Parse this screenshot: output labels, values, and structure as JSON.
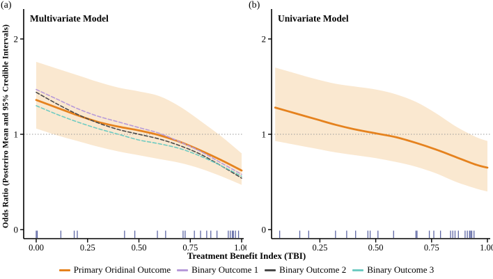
{
  "figure": {
    "panel_a_tag": "(a)",
    "panel_b_tag": "(b)",
    "y_axis_label": "Odds Ratio (Posteriro Mean and 95% Credible Intervals)",
    "x_axis_label": "Treatment Benefit Index (TBI)"
  },
  "colors": {
    "band": "#FAE8D0",
    "reference_line": "#9A9A9A",
    "axis": "#000000",
    "rug": "#333E8C",
    "primary": "#E5821E",
    "binary1": "#B79AD9",
    "binary2": "#4A4A4A",
    "binary3": "#6FCBC2"
  },
  "legend": [
    {
      "label": "Primary Oridinal Outcome",
      "color": "#E5821E"
    },
    {
      "label": "Binary Outcome 1",
      "color": "#B79AD9"
    },
    {
      "label": "Binary Outcome 2",
      "color": "#4A4A4A"
    },
    {
      "label": "Binary Outcome 3",
      "color": "#6FCBC2"
    }
  ],
  "chart_data": [
    {
      "type": "line",
      "tag": "(a)",
      "title": "Multivariate Model",
      "xlabel": "Treatment Benefit Index (TBI)",
      "ylabel": "Odds Ratio (Posteriro Mean and 95% Credible Intervals)",
      "xlim": [
        0,
        1
      ],
      "ylim": [
        0,
        2.2
      ],
      "reference_line_y": 1,
      "x_tick_values": [
        0,
        0.25,
        0.5,
        0.75,
        1.0
      ],
      "x_tick_labels": [
        "0.00",
        "0.25",
        "0.50",
        "0.75",
        "1.00"
      ],
      "y_tick_values": [
        0,
        1,
        2
      ],
      "y_tick_labels": [
        "0",
        "1",
        "2"
      ],
      "x": [
        0,
        0.1,
        0.2,
        0.3,
        0.4,
        0.5,
        0.6,
        0.7,
        0.8,
        0.9,
        1.0
      ],
      "series": [
        {
          "name": "Primary Oridinal Outcome",
          "color": "#E5821E",
          "dash": "",
          "width": 2.8,
          "values": [
            1.36,
            1.28,
            1.2,
            1.13,
            1.08,
            1.04,
            0.99,
            0.92,
            0.83,
            0.73,
            0.62
          ]
        },
        {
          "name": "Binary Outcome 1",
          "color": "#B79AD9",
          "dash": "5 3",
          "width": 1.6,
          "values": [
            1.47,
            1.37,
            1.27,
            1.19,
            1.13,
            1.07,
            1.01,
            0.92,
            0.82,
            0.7,
            0.58
          ]
        },
        {
          "name": "Binary Outcome 2",
          "color": "#4A4A4A",
          "dash": "5 3",
          "width": 1.6,
          "values": [
            1.44,
            1.32,
            1.21,
            1.12,
            1.05,
            1.0,
            0.95,
            0.88,
            0.79,
            0.67,
            0.54
          ]
        },
        {
          "name": "Binary Outcome 3",
          "color": "#6FCBC2",
          "dash": "5 3",
          "width": 1.6,
          "values": [
            1.3,
            1.21,
            1.13,
            1.06,
            1.0,
            0.94,
            0.9,
            0.85,
            0.77,
            0.67,
            0.56
          ]
        }
      ],
      "band": {
        "upper": [
          1.76,
          1.69,
          1.62,
          1.55,
          1.49,
          1.45,
          1.4,
          1.29,
          1.14,
          0.98,
          0.8
        ],
        "lower": [
          1.06,
          0.99,
          0.93,
          0.87,
          0.82,
          0.78,
          0.74,
          0.7,
          0.64,
          0.56,
          0.47
        ]
      },
      "rug": [
        0.0,
        0.005,
        0.12,
        0.185,
        0.2,
        0.43,
        0.48,
        0.59,
        0.63,
        0.715,
        0.725,
        0.77,
        0.8,
        0.83,
        0.85,
        0.88,
        0.935,
        0.945,
        0.955,
        0.96,
        0.97,
        0.985
      ]
    },
    {
      "type": "line",
      "tag": "(b)",
      "title": "Univariate Model",
      "xlabel": "Treatment Benefit Index (TBI)",
      "ylabel": "Odds Ratio (Posteriro Mean and 95% Credible Intervals)",
      "xlim": [
        0.04,
        1
      ],
      "ylim": [
        0,
        2.2
      ],
      "reference_line_y": 1,
      "x_tick_values": [
        0.25,
        0.5,
        0.75,
        1.0
      ],
      "x_tick_labels": [
        "0.25",
        "0.50",
        "0.75",
        "1.00"
      ],
      "y_tick_values": [
        0,
        1,
        2
      ],
      "y_tick_labels": [
        "0",
        "1",
        "2"
      ],
      "x": [
        0.05,
        0.14,
        0.23,
        0.32,
        0.41,
        0.5,
        0.59,
        0.68,
        0.77,
        0.86,
        0.95,
        1.0
      ],
      "series": [
        {
          "name": "Primary Oridinal Outcome",
          "color": "#E5821E",
          "dash": "",
          "width": 2.8,
          "values": [
            1.28,
            1.22,
            1.16,
            1.1,
            1.05,
            1.01,
            0.97,
            0.91,
            0.84,
            0.76,
            0.68,
            0.65
          ]
        }
      ],
      "band": {
        "upper": [
          1.7,
          1.64,
          1.58,
          1.53,
          1.5,
          1.47,
          1.42,
          1.34,
          1.22,
          1.08,
          0.97,
          0.93
        ],
        "lower": [
          0.93,
          0.89,
          0.85,
          0.81,
          0.78,
          0.75,
          0.71,
          0.66,
          0.59,
          0.5,
          0.43,
          0.4
        ]
      },
      "rug": [
        0.07,
        0.16,
        0.2,
        0.32,
        0.37,
        0.41,
        0.465,
        0.475,
        0.51,
        0.58,
        0.68,
        0.685,
        0.74,
        0.76,
        0.79,
        0.835,
        0.845,
        0.855,
        0.87,
        0.9,
        0.91,
        0.92,
        0.925,
        0.93,
        0.94
      ]
    }
  ]
}
